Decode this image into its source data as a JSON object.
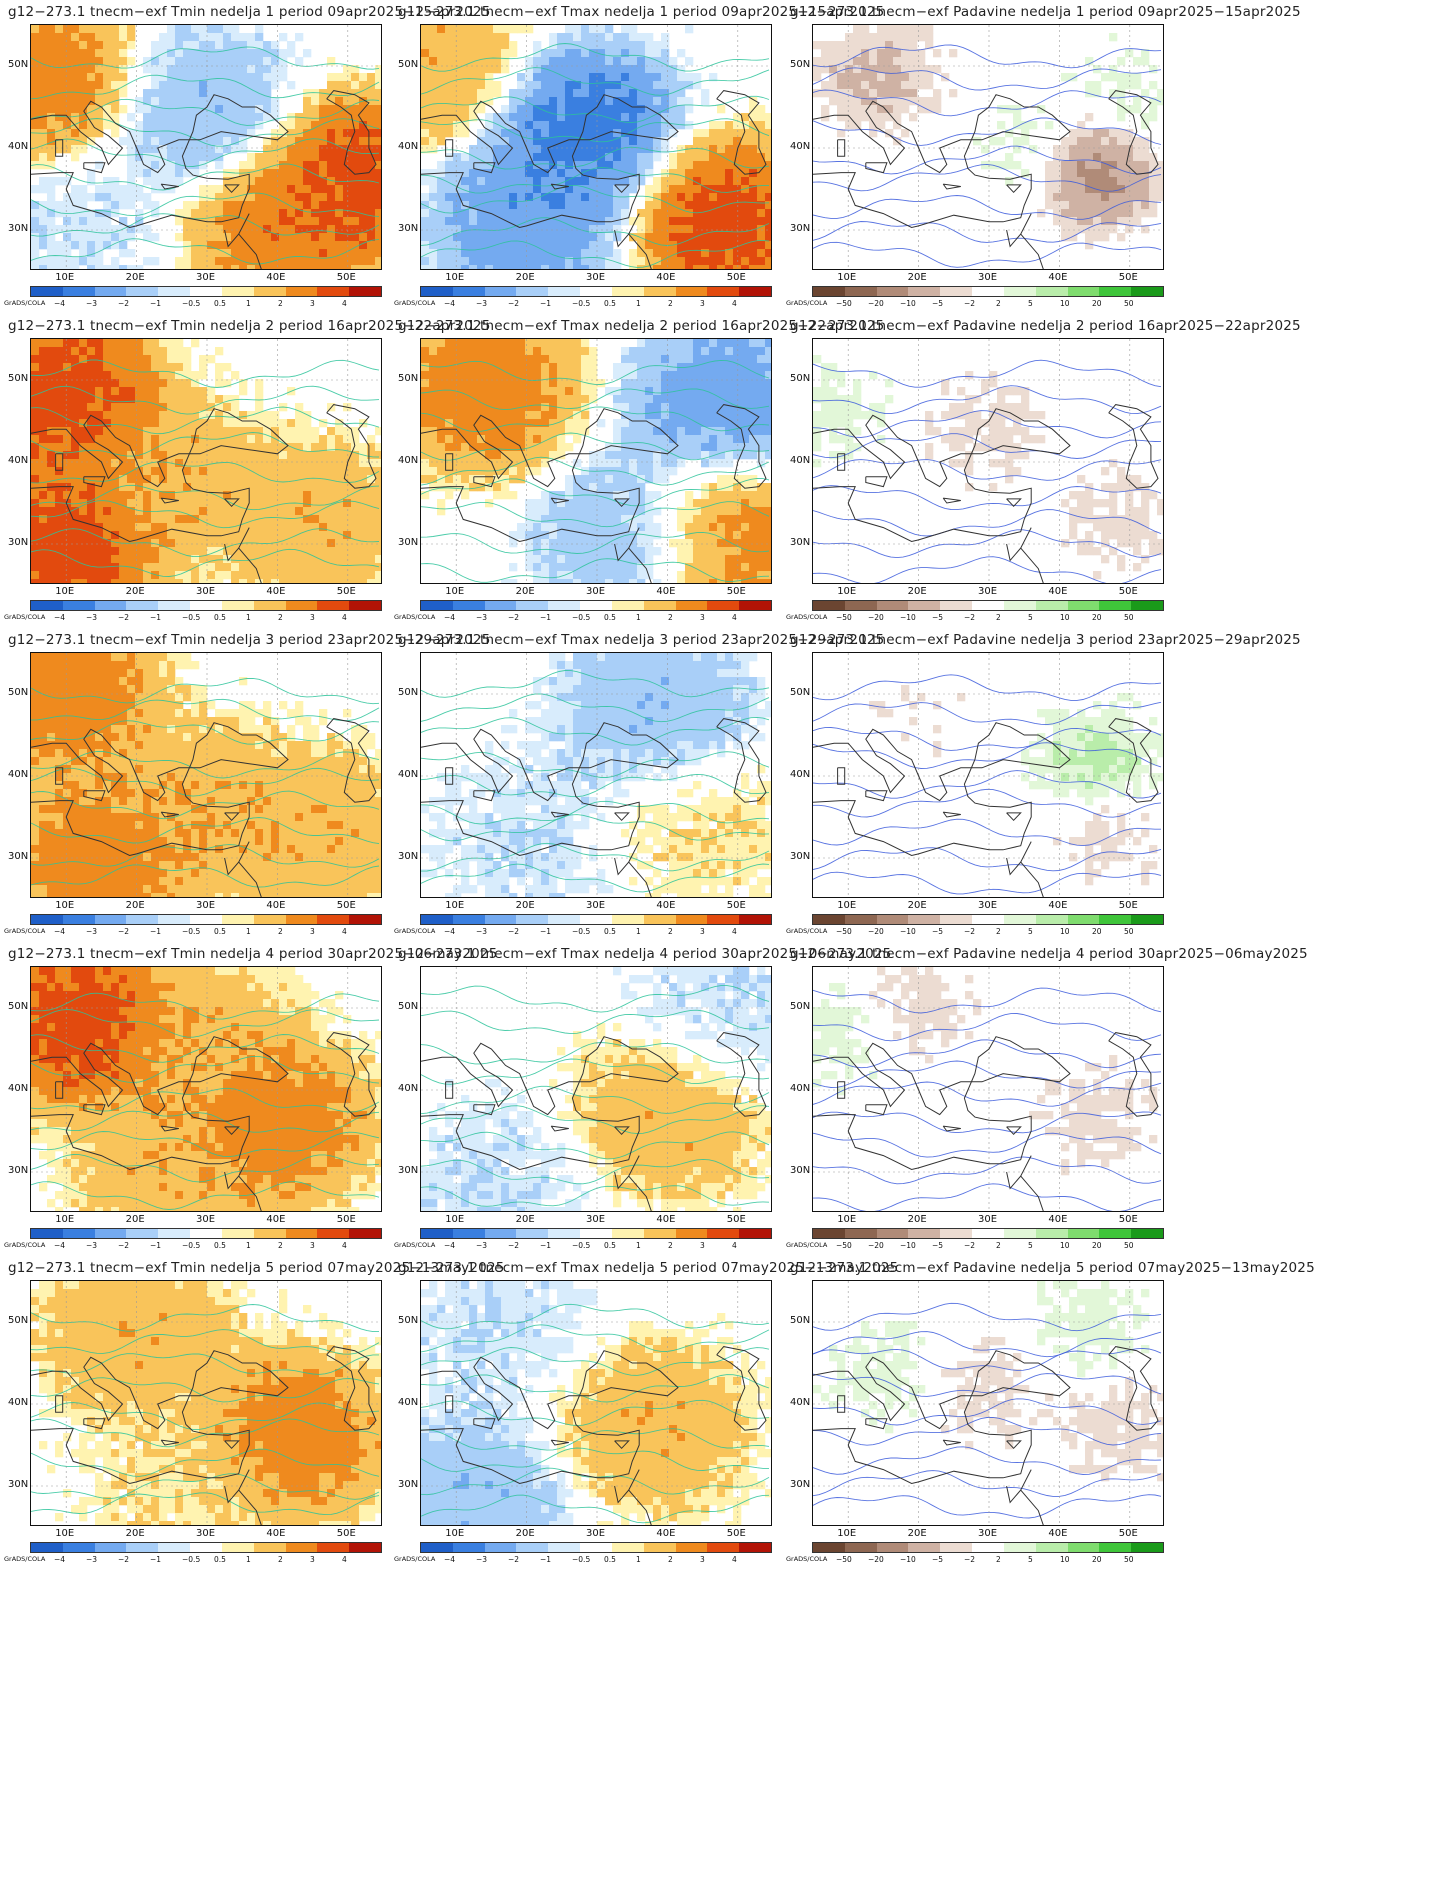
{
  "panels": [
    {
      "title": "g12−273.1 tnecm−exf Tmin nedelja 1 period 09apr2025−15apr2025",
      "var": "tmin",
      "row": 0,
      "col": 0
    },
    {
      "title": "g12−273.1 tnecm−exf Tmax nedelja 1 period 09apr2025−15apr2025",
      "var": "tmax",
      "row": 0,
      "col": 1
    },
    {
      "title": "g12−273.1 tnecm−exf Padavine nedelja 1 period 09apr2025−15apr2025",
      "var": "prec",
      "row": 0,
      "col": 2
    },
    {
      "title": "g12−273.1 tnecm−exf Tmin nedelja 2 period 16apr2025−22apr2025",
      "var": "tmin",
      "row": 1,
      "col": 0
    },
    {
      "title": "g12−273.1 tnecm−exf Tmax nedelja 2 period 16apr2025−22apr2025",
      "var": "tmax",
      "row": 1,
      "col": 1
    },
    {
      "title": "g12−273.1 tnecm−exf Padavine nedelja 2 period 16apr2025−22apr2025",
      "var": "prec",
      "row": 1,
      "col": 2
    },
    {
      "title": "g12−273.1 tnecm−exf Tmin nedelja 3 period 23apr2025−29apr2025",
      "var": "tmin",
      "row": 2,
      "col": 0
    },
    {
      "title": "g12−273.1 tnecm−exf Tmax nedelja 3 period 23apr2025−29apr2025",
      "var": "tmax",
      "row": 2,
      "col": 1
    },
    {
      "title": "g12−273.1 tnecm−exf Padavine nedelja 3 period 23apr2025−29apr2025",
      "var": "prec",
      "row": 2,
      "col": 2
    },
    {
      "title": "g12−273.1 tnecm−exf Tmin nedelja 4 period 30apr2025−06may2025",
      "var": "tmin",
      "row": 3,
      "col": 0
    },
    {
      "title": "g12−273.1 tnecm−exf Tmax nedelja 4 period 30apr2025−06may2025",
      "var": "tmax",
      "row": 3,
      "col": 1
    },
    {
      "title": "g12−273.1 tnecm−exf Padavine nedelja 4 period 30apr2025−06may2025",
      "var": "prec",
      "row": 3,
      "col": 2
    },
    {
      "title": "g12−273.1 tnecm−exf Tmin nedelja 5 period 07may2025−13may2025",
      "var": "tmin",
      "row": 4,
      "col": 0
    },
    {
      "title": "g12−273.1 tnecm−exf Tmax nedelja 5 period 07may2025−13may2025",
      "var": "tmax",
      "row": 4,
      "col": 1
    },
    {
      "title": "g12−273.1 tnecm−exf Padavine nedelja 5 period 07may2025−13may2025",
      "var": "prec",
      "row": 4,
      "col": 2
    }
  ],
  "axes": {
    "lat_labels": [
      "50N",
      "40N",
      "30N"
    ],
    "lon_labels": [
      "10E",
      "20E",
      "30E",
      "40E",
      "50E"
    ]
  },
  "grads_label": "GrADS/COLA",
  "colorbars": {
    "temp": {
      "ticks": [
        "−4",
        "−3",
        "−2",
        "−1",
        "−0.5",
        "0.5",
        "1",
        "2",
        "3",
        "4"
      ],
      "colors": [
        "#1f5fc8",
        "#3a7fe0",
        "#74aaf0",
        "#a9cff8",
        "#d8ecfc",
        "#ffffff",
        "#fff3b0",
        "#f9c45a",
        "#ef8a1e",
        "#e24a0e",
        "#b21306"
      ]
    },
    "prec": {
      "ticks": [
        "−50",
        "−20",
        "−10",
        "−5",
        "−2",
        "2",
        "5",
        "10",
        "20",
        "50"
      ],
      "colors": [
        "#6b4531",
        "#8e6752",
        "#b08b78",
        "#cfb2a4",
        "#ecdcd2",
        "#ffffff",
        "#e2f7d8",
        "#b9edaa",
        "#7fdc6e",
        "#3fc53a",
        "#1a9a1a"
      ]
    }
  },
  "chart_data": [
    {
      "type": "heatmap",
      "title": "g12−273.1 tnecm−exf Tmin nedelja 1 period 09apr2025−15apr2025",
      "xlim": [
        5,
        55
      ],
      "ylim": [
        25,
        55
      ],
      "levels": [
        -4,
        -3,
        -2,
        -1,
        -0.5,
        0.5,
        1,
        2,
        3,
        4
      ],
      "anomaly_regions": [
        {
          "lon": 7,
          "lat": 48,
          "value": 3
        },
        {
          "lon": 12,
          "lat": 30,
          "value": -1
        },
        {
          "lon": 30,
          "lat": 44,
          "value": -2
        },
        {
          "lon": 40,
          "lat": 31,
          "value": 3
        },
        {
          "lon": 50,
          "lat": 36,
          "value": 4
        }
      ]
    },
    {
      "type": "heatmap",
      "title": "g12−273.1 tnecm−exf Tmax nedelja 1 period 09apr2025−15apr2025",
      "xlim": [
        5,
        55
      ],
      "ylim": [
        25,
        55
      ],
      "levels": [
        -4,
        -3,
        -2,
        -1,
        -0.5,
        0.5,
        1,
        2,
        3,
        4
      ],
      "anomaly_regions": [
        {
          "lon": 7,
          "lat": 50,
          "value": 2
        },
        {
          "lon": 28,
          "lat": 42,
          "value": -4
        },
        {
          "lon": 20,
          "lat": 31,
          "value": -3
        },
        {
          "lon": 48,
          "lat": 31,
          "value": 4
        }
      ]
    },
    {
      "type": "heatmap",
      "title": "g12−273.1 tnecm−exf Padavine nedelja 1 period 09apr2025−15apr2025",
      "xlim": [
        5,
        55
      ],
      "ylim": [
        25,
        55
      ],
      "levels": [
        -50,
        -20,
        -10,
        -5,
        -2,
        2,
        5,
        10,
        20,
        50
      ],
      "anomaly_regions": [
        {
          "lon": 14,
          "lat": 49,
          "value": -10
        },
        {
          "lon": 45,
          "lat": 37,
          "value": -20
        },
        {
          "lon": 36,
          "lat": 39,
          "value": 5
        },
        {
          "lon": 50,
          "lat": 46,
          "value": 5
        }
      ]
    },
    {
      "type": "heatmap",
      "title": "g12−273.1 tnecm−exf Tmin nedelja 2 period 16apr2025−22apr2025",
      "xlim": [
        5,
        55
      ],
      "ylim": [
        25,
        55
      ],
      "levels": [
        -4,
        -3,
        -2,
        -1,
        -0.5,
        0.5,
        1,
        2,
        3,
        4
      ],
      "anomaly_regions": [
        {
          "lon": 10,
          "lat": 48,
          "value": 4
        },
        {
          "lon": 10,
          "lat": 30,
          "value": 4
        },
        {
          "lon": 25,
          "lat": 38,
          "value": 2
        },
        {
          "lon": 45,
          "lat": 33,
          "value": 2
        }
      ]
    },
    {
      "type": "heatmap",
      "title": "g12−273.1 tnecm−exf Tmax nedelja 2 period 16apr2025−22apr2025",
      "xlim": [
        5,
        55
      ],
      "ylim": [
        25,
        55
      ],
      "levels": [
        -4,
        -3,
        -2,
        -1,
        -0.5,
        0.5,
        1,
        2,
        3,
        4
      ],
      "anomaly_regions": [
        {
          "lon": 14,
          "lat": 49,
          "value": 3
        },
        {
          "lon": 48,
          "lat": 47,
          "value": -3
        },
        {
          "lon": 35,
          "lat": 31,
          "value": -2
        },
        {
          "lon": 48,
          "lat": 31,
          "value": 3
        }
      ]
    },
    {
      "type": "heatmap",
      "title": "g12−273.1 tnecm−exf Padavine nedelja 2 period 16apr2025−22apr2025",
      "xlim": [
        5,
        55
      ],
      "ylim": [
        25,
        55
      ],
      "levels": [
        -50,
        -20,
        -10,
        -5,
        -2,
        2,
        5,
        10,
        20,
        50
      ],
      "anomaly_regions": [
        {
          "lon": 7,
          "lat": 46,
          "value": 5
        },
        {
          "lon": 30,
          "lat": 44,
          "value": -5
        },
        {
          "lon": 48,
          "lat": 33,
          "value": -5
        }
      ]
    },
    {
      "type": "heatmap",
      "title": "g12−273.1 tnecm−exf Tmin nedelja 3 period 23apr2025−29apr2025",
      "xlim": [
        5,
        55
      ],
      "ylim": [
        25,
        55
      ],
      "levels": [
        -4,
        -3,
        -2,
        -1,
        -0.5,
        0.5,
        1,
        2,
        3,
        4
      ],
      "anomaly_regions": [
        {
          "lon": 10,
          "lat": 50,
          "value": 3
        },
        {
          "lon": 15,
          "lat": 30,
          "value": 3
        },
        {
          "lon": 30,
          "lat": 36,
          "value": 2
        },
        {
          "lon": 45,
          "lat": 33,
          "value": 2
        }
      ]
    },
    {
      "type": "heatmap",
      "title": "g12−273.1 tnecm−exf Tmax nedelja 3 period 23apr2025−29apr2025",
      "xlim": [
        5,
        55
      ],
      "ylim": [
        25,
        55
      ],
      "levels": [
        -4,
        -3,
        -2,
        -1,
        -0.5,
        0.5,
        1,
        2,
        3,
        4
      ],
      "anomaly_regions": [
        {
          "lon": 38,
          "lat": 48,
          "value": -2
        },
        {
          "lon": 20,
          "lat": 32,
          "value": -1
        },
        {
          "lon": 45,
          "lat": 33,
          "value": 1
        }
      ]
    },
    {
      "type": "heatmap",
      "title": "g12−273.1 tnecm−exf Padavine nedelja 3 period 23apr2025−29apr2025",
      "xlim": [
        5,
        55
      ],
      "ylim": [
        25,
        55
      ],
      "levels": [
        -50,
        -20,
        -10,
        -5,
        -2,
        2,
        5,
        10,
        20,
        50
      ],
      "anomaly_regions": [
        {
          "lon": 45,
          "lat": 42,
          "value": 10
        },
        {
          "lon": 47,
          "lat": 33,
          "value": -5
        },
        {
          "lon": 20,
          "lat": 48,
          "value": -2
        }
      ]
    },
    {
      "type": "heatmap",
      "title": "g12−273.1 tnecm−exf Tmin nedelja 4 period 30apr2025−06may2025",
      "xlim": [
        5,
        55
      ],
      "ylim": [
        25,
        55
      ],
      "levels": [
        -4,
        -3,
        -2,
        -1,
        -0.5,
        0.5,
        1,
        2,
        3,
        4
      ],
      "anomaly_regions": [
        {
          "lon": 12,
          "lat": 48,
          "value": 4
        },
        {
          "lon": 40,
          "lat": 36,
          "value": 3
        },
        {
          "lon": 30,
          "lat": 45,
          "value": 2
        },
        {
          "lon": 25,
          "lat": 30,
          "value": 2
        }
      ]
    },
    {
      "type": "heatmap",
      "title": "g12−273.1 tnecm−exf Tmax nedelja 4 period 30apr2025−06may2025",
      "xlim": [
        5,
        55
      ],
      "ylim": [
        25,
        55
      ],
      "levels": [
        -4,
        -3,
        -2,
        -1,
        -0.5,
        0.5,
        1,
        2,
        3,
        4
      ],
      "anomaly_regions": [
        {
          "lon": 40,
          "lat": 37,
          "value": 2
        },
        {
          "lon": 15,
          "lat": 28,
          "value": -1
        },
        {
          "lon": 48,
          "lat": 50,
          "value": -1
        }
      ]
    },
    {
      "type": "heatmap",
      "title": "g12−273.1 tnecm−exf Padavine nedelja 4 period 30apr2025−06may2025",
      "xlim": [
        5,
        55
      ],
      "ylim": [
        25,
        55
      ],
      "levels": [
        -50,
        -20,
        -10,
        -5,
        -2,
        2,
        5,
        10,
        20,
        50
      ],
      "anomaly_regions": [
        {
          "lon": 8,
          "lat": 46,
          "value": 5
        },
        {
          "lon": 45,
          "lat": 37,
          "value": -5
        },
        {
          "lon": 20,
          "lat": 50,
          "value": -5
        }
      ]
    },
    {
      "type": "heatmap",
      "title": "g12−273.1 tnecm−exf Tmin nedelja 5 period 07may2025−13may2025",
      "xlim": [
        5,
        55
      ],
      "ylim": [
        25,
        55
      ],
      "levels": [
        -4,
        -3,
        -2,
        -1,
        -0.5,
        0.5,
        1,
        2,
        3,
        4
      ],
      "anomaly_regions": [
        {
          "lon": 20,
          "lat": 48,
          "value": 2
        },
        {
          "lon": 42,
          "lat": 36,
          "value": 3
        },
        {
          "lon": 25,
          "lat": 30,
          "value": 1
        }
      ]
    },
    {
      "type": "heatmap",
      "title": "g12−273.1 tnecm−exf Tmax nedelja 5 period 07may2025−13may2025",
      "xlim": [
        5,
        55
      ],
      "ylim": [
        25,
        55
      ],
      "levels": [
        -4,
        -3,
        -2,
        -1,
        -0.5,
        0.5,
        1,
        2,
        3,
        4
      ],
      "anomaly_regions": [
        {
          "lon": 15,
          "lat": 50,
          "value": -1
        },
        {
          "lon": 38,
          "lat": 37,
          "value": 2
        },
        {
          "lon": 12,
          "lat": 28,
          "value": -2
        }
      ]
    },
    {
      "type": "heatmap",
      "title": "g12−273.1 tnecm−exf Padavine nedelja 5 period 07may2025−13may2025",
      "xlim": [
        5,
        55
      ],
      "ylim": [
        25,
        55
      ],
      "levels": [
        -50,
        -20,
        -10,
        -5,
        -2,
        2,
        5,
        10,
        20,
        50
      ],
      "anomaly_regions": [
        {
          "lon": 15,
          "lat": 44,
          "value": 5
        },
        {
          "lon": 48,
          "lat": 37,
          "value": -5
        },
        {
          "lon": 30,
          "lat": 42,
          "value": -5
        },
        {
          "lon": 45,
          "lat": 50,
          "value": 5
        }
      ]
    }
  ]
}
